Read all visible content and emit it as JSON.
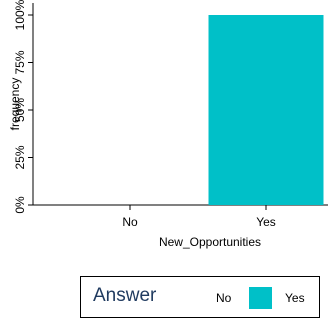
{
  "chart_data": {
    "type": "bar",
    "categories": [
      "No",
      "Yes"
    ],
    "values": [
      0,
      100
    ],
    "xlabel": "New_Opportunities",
    "ylabel": "frequency",
    "ylim": [
      0,
      100
    ],
    "yticks": [
      0,
      25,
      50,
      75,
      100
    ],
    "ytick_labels": [
      "0%",
      "25%",
      "50%",
      "75%",
      "100%"
    ],
    "grid": false,
    "legend": {
      "title": "Answer",
      "placement": "bottom",
      "entries": [
        {
          "label": "No",
          "color": "#ffffff"
        },
        {
          "label": "Yes",
          "color": "#00c0c8"
        }
      ]
    },
    "colors": {
      "No": "#ffffff",
      "Yes": "#00c0c8"
    }
  }
}
